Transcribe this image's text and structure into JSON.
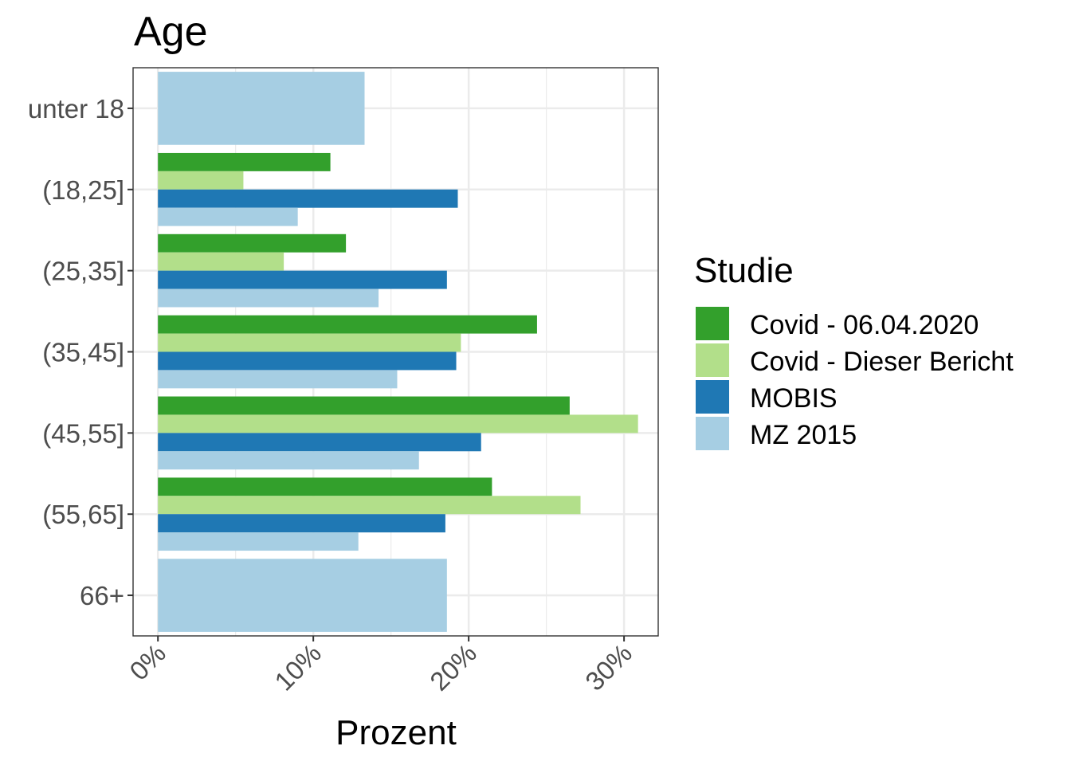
{
  "chart_data": {
    "type": "bar",
    "orientation": "horizontal",
    "title": "Age",
    "xlabel": "Prozent",
    "ylabel": "",
    "categories": [
      "unter 18",
      "(18,25]",
      "(25,35]",
      "(35,45]",
      "(45,55]",
      "(55,65]",
      "66+"
    ],
    "xlim": [
      -0.016,
      0.322
    ],
    "xticks": [
      0,
      0.1,
      0.2,
      0.3
    ],
    "xtick_labels": [
      "0%",
      "10%",
      "20%",
      "30%"
    ],
    "grid": true,
    "legend": {
      "title": "Studie",
      "placement": "right"
    },
    "series": [
      {
        "name": "Covid - 06.04.2020",
        "color": "#33a02c",
        "values": [
          null,
          0.111,
          0.121,
          0.244,
          0.265,
          0.215,
          null
        ]
      },
      {
        "name": "Covid - Dieser Bericht",
        "color": "#b2df8a",
        "values": [
          null,
          0.055,
          0.081,
          0.195,
          0.309,
          0.272,
          null
        ]
      },
      {
        "name": "MOBIS",
        "color": "#1f78b4",
        "values": [
          null,
          0.193,
          0.186,
          0.192,
          0.208,
          0.185,
          null
        ]
      },
      {
        "name": "MZ 2015",
        "color": "#a6cee3",
        "values": [
          0.133,
          0.09,
          0.142,
          0.154,
          0.168,
          0.129,
          0.186
        ]
      }
    ]
  }
}
